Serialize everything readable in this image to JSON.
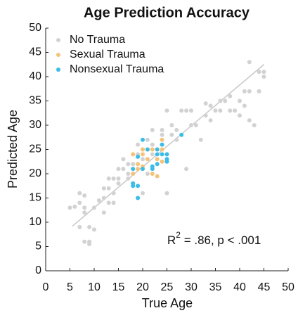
{
  "chart_data": {
    "type": "scatter",
    "title": "Age Prediction Accuracy",
    "x_label": "True Age",
    "y_label": "Predicted Age",
    "annotation": [
      "R",
      "2",
      " = .86, p < .001"
    ],
    "xlim": [
      0,
      50
    ],
    "ylim": [
      0,
      50
    ],
    "xticks": [
      0,
      5,
      10,
      15,
      20,
      25,
      30,
      35,
      40,
      45,
      50
    ],
    "yticks": [
      0,
      5,
      10,
      15,
      20,
      25,
      30,
      35,
      40,
      45,
      50
    ],
    "grid": false,
    "legend": "upper-left",
    "fit_line": {
      "color": "#c8c8c8",
      "x": [
        5.5,
        45
      ],
      "y": [
        9.2,
        42.5
      ]
    },
    "series": [
      {
        "name": "No Trauma",
        "color": "#d2d2d2",
        "x": [
          5,
          6,
          7,
          7,
          8,
          8,
          7,
          8,
          9,
          9,
          8,
          9,
          10,
          10,
          11,
          12,
          12,
          12,
          13,
          13,
          13,
          14,
          14,
          14,
          15,
          15,
          15,
          16,
          16,
          17,
          17,
          17,
          18,
          18,
          19,
          19,
          20,
          20,
          20,
          21,
          21,
          22,
          22,
          22,
          23,
          24,
          24,
          24,
          25,
          25,
          26,
          26,
          27,
          27,
          28,
          29,
          29,
          30,
          31,
          32,
          33,
          34,
          34,
          35,
          36,
          36,
          37,
          38,
          38,
          39,
          40,
          40,
          41,
          41,
          42,
          42,
          42,
          43,
          44,
          45,
          45,
          44,
          30,
          33
        ],
        "values": [
          13,
          13.2,
          16,
          14,
          15.5,
          13,
          9,
          6,
          6,
          5.5,
          12,
          9,
          8.5,
          13,
          14.5,
          15,
          17,
          12,
          19,
          17,
          14,
          14,
          16,
          19,
          18,
          19,
          21,
          21,
          23,
          20,
          22,
          19,
          18,
          22,
          24,
          26,
          23,
          25,
          16,
          20,
          27,
          24,
          26,
          29,
          25,
          26,
          28,
          29,
          33,
          16,
          28,
          30,
          27,
          29,
          33,
          33,
          21,
          33,
          30,
          27,
          32,
          34,
          31,
          33,
          33,
          35,
          35,
          36,
          33,
          33,
          35,
          32,
          37,
          34,
          43,
          37,
          31,
          30,
          41,
          40,
          41,
          37,
          30,
          34.5
        ]
      },
      {
        "name": "Sexual Trauma",
        "color": "#f5c27a",
        "x": [
          18,
          19,
          19,
          20,
          20,
          21,
          20,
          21,
          22,
          22,
          23,
          23,
          24,
          24,
          24,
          25,
          18
        ],
        "values": [
          24,
          22,
          21,
          24,
          25,
          23,
          21.5,
          25,
          25,
          20,
          19.5,
          23,
          27,
          25,
          22.5,
          24,
          20
        ]
      },
      {
        "name": "Nonsexual Trauma",
        "color": "#3bbde6",
        "x": [
          18,
          18,
          18,
          19,
          19,
          20,
          20,
          21,
          22,
          22,
          23,
          23,
          23,
          24,
          24,
          25,
          25,
          25,
          28,
          19
        ],
        "values": [
          21,
          18,
          17.5,
          15,
          17.5,
          27,
          21,
          25,
          21.5,
          21,
          24,
          25,
          22,
          26,
          24,
          23,
          22.5,
          24,
          28,
          23.5
        ]
      }
    ]
  }
}
